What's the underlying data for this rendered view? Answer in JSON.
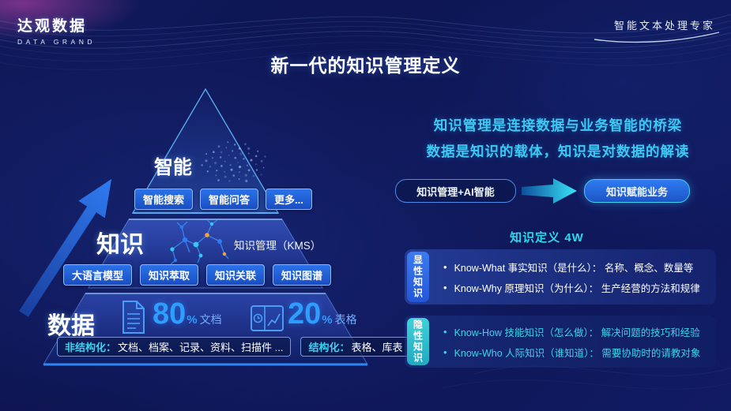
{
  "header": {
    "logo_title": "达观数据",
    "logo_subtitle": "DATA GRAND",
    "tagline": "智能文本处理专家"
  },
  "title": "新一代的知识管理定义",
  "pyramid": {
    "levels": [
      {
        "name": "智能",
        "chips": [
          "智能搜索",
          "智能问答",
          "更多..."
        ]
      },
      {
        "name": "知识",
        "caption": "知识管理（KMS）",
        "chips": [
          "大语言模型",
          "知识萃取",
          "知识关联",
          "知识图谱"
        ]
      },
      {
        "name": "数据",
        "stats": [
          {
            "value": "80",
            "unit": "%",
            "label": "文档"
          },
          {
            "value": "20",
            "unit": "%",
            "label": "表格"
          }
        ],
        "groups": [
          {
            "label": "非结构化：",
            "items": "文档、档案、记录、资料、扫描件 ..."
          },
          {
            "label": "结构化：",
            "items": "表格、库表"
          }
        ]
      }
    ]
  },
  "right": {
    "intro_lines": [
      "知识管理是连接数据与业务智能的桥梁",
      "数据是知识的载体，知识是对数据的解读"
    ],
    "flow": {
      "source": "知识管理+AI智能",
      "target": "知识赋能业务"
    },
    "section_title": "知识定义 4W",
    "knowledge_groups": [
      {
        "tab": "显性知识",
        "bullets": [
          "Know-What 事实知识（是什么）： 名称、概念、数量等",
          "Know-Why 原理知识（为什么）： 生产经营的方法和规律"
        ]
      },
      {
        "tab": "隐性知识",
        "bullets": [
          "Know-How 技能知识（怎么做）： 解决问题的技巧和经验",
          "Know-Who 人际知识（谁知道）： 需要协助时的请教对象"
        ]
      }
    ]
  },
  "colors": {
    "accent_cyan": "#36c9f0",
    "accent_blue": "#2e7df0",
    "stat_blue": "#2f9dff",
    "tab_blue": "#2e6ce0",
    "tab_cyan": "#35c2d4"
  },
  "icons": {
    "brain": "dotted-brain-icon",
    "network": "knowledge-graph-icon",
    "document": "document-icon",
    "table": "table-chart-icon",
    "growth_arrow": "growth-arrow-icon",
    "flow_arrow": "flow-arrow-icon"
  }
}
